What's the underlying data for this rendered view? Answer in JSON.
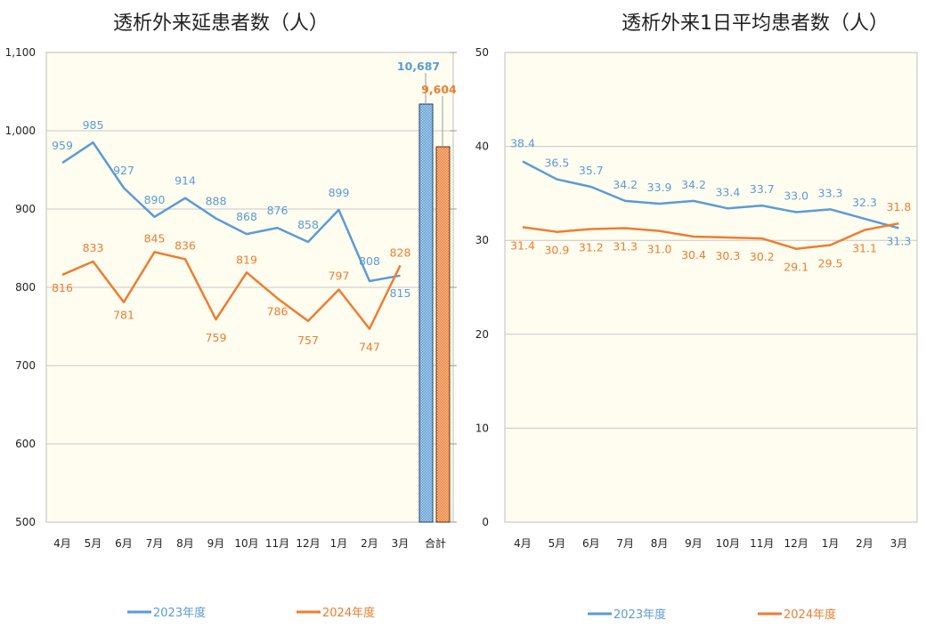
{
  "chart_data": [
    {
      "type": "line",
      "title": "透析外来延患者数（人）",
      "categories": [
        "4月",
        "5月",
        "6月",
        "7月",
        "8月",
        "9月",
        "10月",
        "11月",
        "12月",
        "1月",
        "2月",
        "3月"
      ],
      "total_category": "合計",
      "series": [
        {
          "name": "2023年度",
          "color": "#5b9bd5",
          "values": [
            959,
            985,
            927,
            890,
            914,
            888,
            868,
            876,
            858,
            899,
            808,
            815
          ],
          "total": "10,687"
        },
        {
          "name": "2024年度",
          "color": "#ed7d31",
          "values": [
            816,
            833,
            781,
            845,
            836,
            759,
            819,
            786,
            757,
            797,
            747,
            828
          ],
          "total": "9,604"
        }
      ],
      "y_ticks": [
        "500",
        "600",
        "700",
        "800",
        "900",
        "1,000",
        "1,100"
      ],
      "ylim": [
        500,
        1100
      ],
      "grid": true,
      "legend": "bottom"
    },
    {
      "type": "line",
      "title": "透析外来1日平均患者数（人）",
      "categories": [
        "4月",
        "5月",
        "6月",
        "7月",
        "8月",
        "9月",
        "10月",
        "11月",
        "12月",
        "1月",
        "2月",
        "3月"
      ],
      "series": [
        {
          "name": "2023年度",
          "color": "#5b9bd5",
          "values": [
            38.4,
            36.5,
            35.7,
            34.2,
            33.9,
            34.2,
            33.4,
            33.7,
            33.0,
            33.3,
            32.3,
            31.3
          ]
        },
        {
          "name": "2024年度",
          "color": "#ed7d31",
          "values": [
            31.4,
            30.9,
            31.2,
            31.3,
            31.0,
            30.4,
            30.3,
            30.2,
            29.1,
            29.5,
            31.1,
            31.8
          ]
        }
      ],
      "y_ticks": [
        "0",
        "10",
        "20",
        "30",
        "40",
        "50"
      ],
      "ylim": [
        0,
        50
      ],
      "grid": true,
      "legend": "bottom"
    }
  ]
}
